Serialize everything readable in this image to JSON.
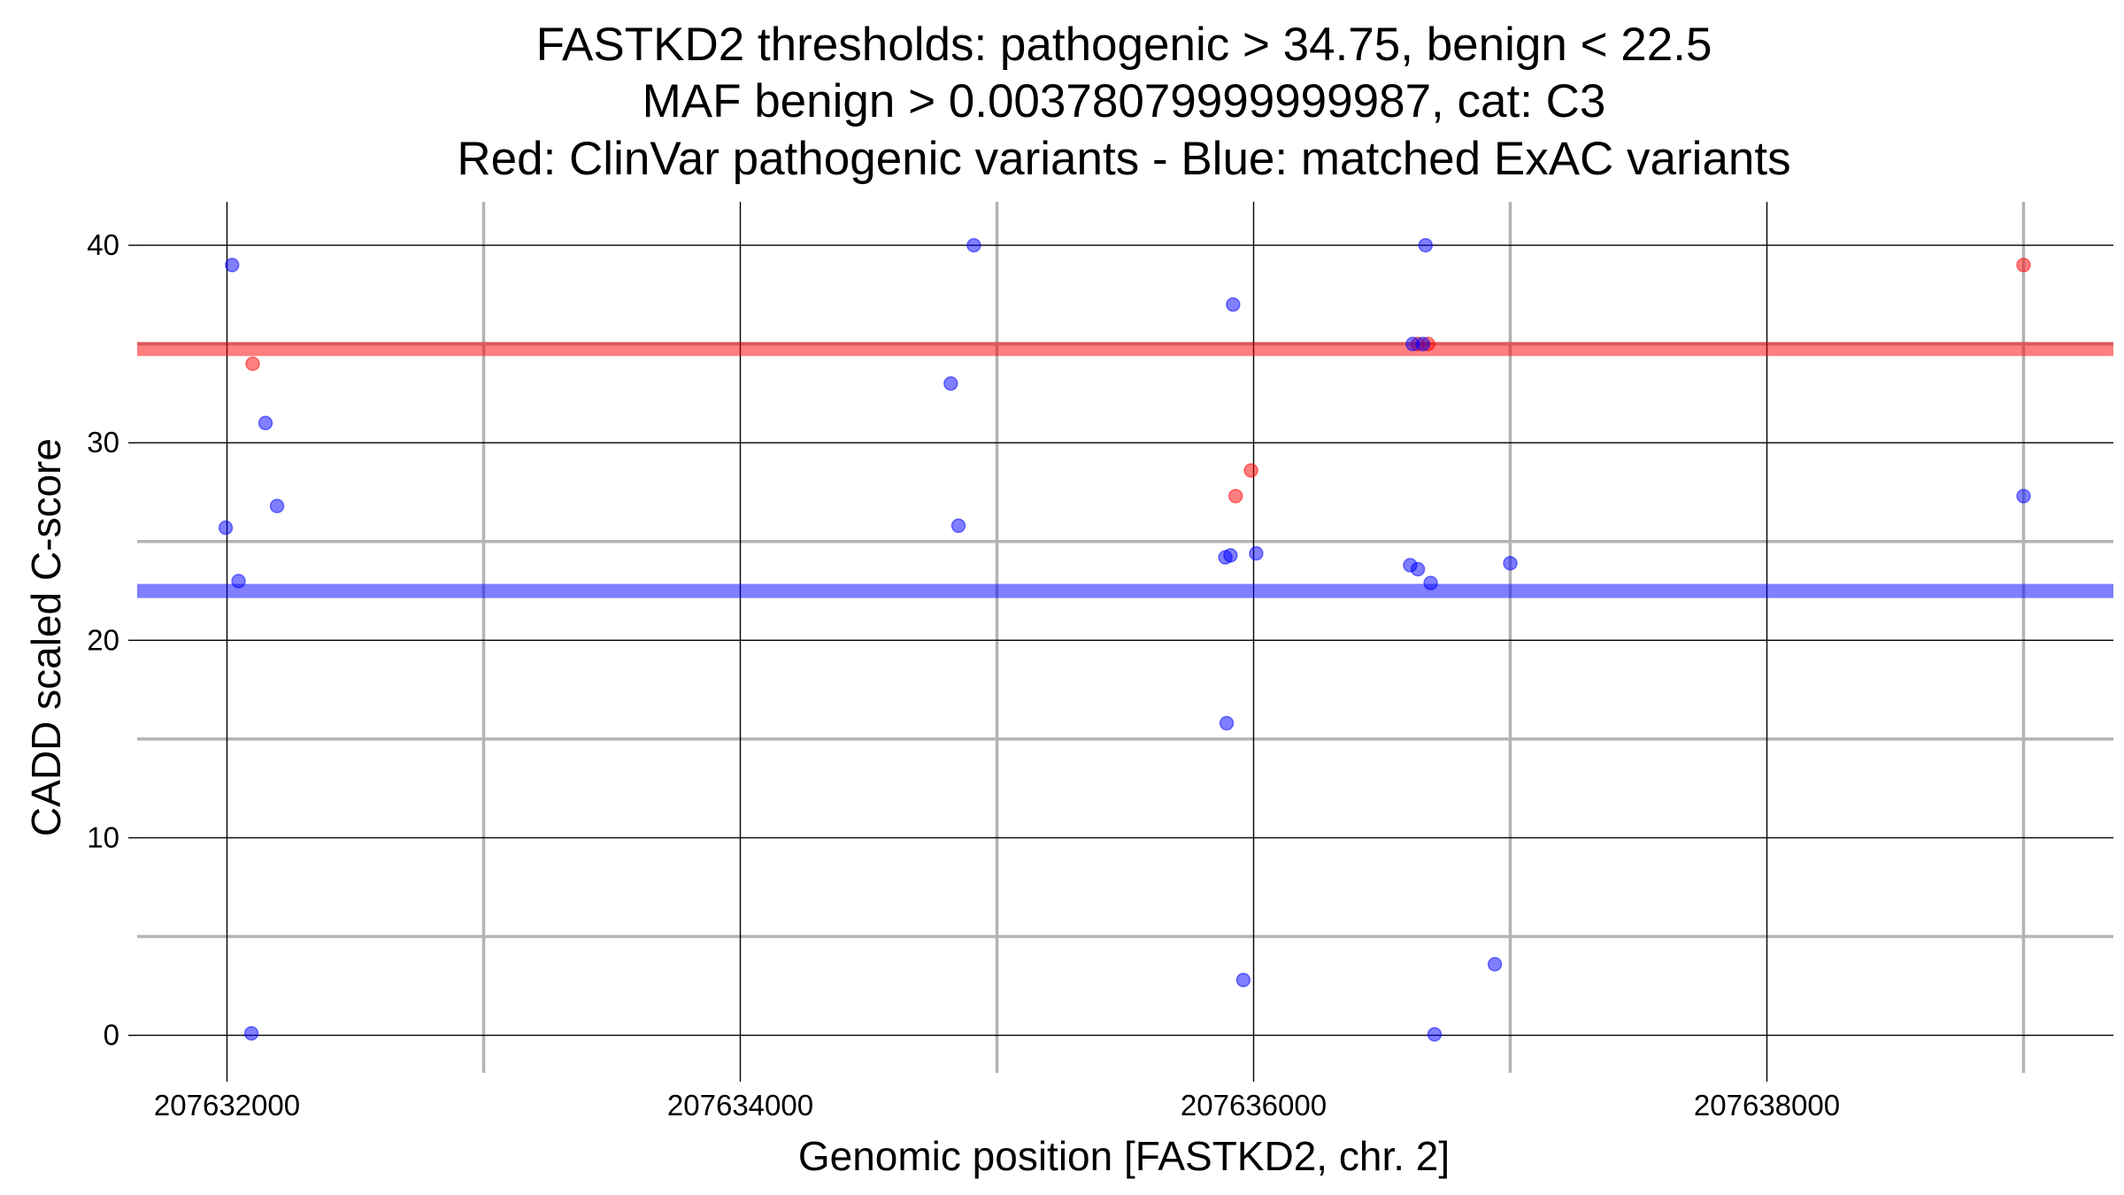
{
  "chart_data": {
    "type": "scatter",
    "title_lines": [
      "FASTKD2 thresholds: pathogenic > 34.75, benign < 22.5",
      "MAF benign > 0.00378079999999987, cat: C3",
      "Red: ClinVar pathogenic variants - Blue: matched ExAC variants"
    ],
    "xlabel": "Genomic position [FASTKD2, chr. 2]",
    "ylabel": "CADD scaled C-score",
    "xlim": [
      207631650,
      207639350
    ],
    "ylim": [
      -1.9,
      42.2
    ],
    "x_ticks": [
      207632000,
      207634000,
      207636000,
      207638000
    ],
    "x_tick_labels": [
      "207632000",
      "207634000",
      "207636000",
      "207638000"
    ],
    "x_minor_ticks": [
      207633000,
      207635000,
      207637000,
      207639000
    ],
    "y_ticks": [
      0,
      10,
      20,
      30,
      40
    ],
    "y_tick_labels": [
      "0",
      "10",
      "20",
      "30",
      "40"
    ],
    "y_minor_ticks": [
      5,
      15,
      25,
      35
    ],
    "grid": true,
    "thresholds": [
      {
        "name": "pathogenic",
        "value": 34.75,
        "color": "#ff0000"
      },
      {
        "name": "benign",
        "value": 22.5,
        "color": "#0000ff"
      }
    ],
    "series": [
      {
        "color": "#ff0000",
        "points": [
          {
            "x": 207632100,
            "y": 34.0
          },
          {
            "x": 207635930,
            "y": 27.3
          },
          {
            "x": 207635990,
            "y": 28.6
          },
          {
            "x": 207636640,
            "y": 35.0
          },
          {
            "x": 207636680,
            "y": 35.0
          },
          {
            "x": 207639000,
            "y": 39.0
          }
        ]
      },
      {
        "color": "#0000ff",
        "points": [
          {
            "x": 207632020,
            "y": 39.0
          },
          {
            "x": 207631995,
            "y": 25.7
          },
          {
            "x": 207632045,
            "y": 23.0
          },
          {
            "x": 207632150,
            "y": 31.0
          },
          {
            "x": 207632195,
            "y": 26.8
          },
          {
            "x": 207632095,
            "y": 0.1
          },
          {
            "x": 207634820,
            "y": 33.0
          },
          {
            "x": 207634850,
            "y": 25.8
          },
          {
            "x": 207634910,
            "y": 40.0
          },
          {
            "x": 207635920,
            "y": 37.0
          },
          {
            "x": 207635890,
            "y": 24.2
          },
          {
            "x": 207635910,
            "y": 24.3
          },
          {
            "x": 207636010,
            "y": 24.4
          },
          {
            "x": 207635895,
            "y": 15.8
          },
          {
            "x": 207635960,
            "y": 2.8
          },
          {
            "x": 207636670,
            "y": 40.0
          },
          {
            "x": 207636620,
            "y": 35.0
          },
          {
            "x": 207636660,
            "y": 35.0
          },
          {
            "x": 207636610,
            "y": 23.8
          },
          {
            "x": 207636640,
            "y": 23.6
          },
          {
            "x": 207636690,
            "y": 22.9
          },
          {
            "x": 207637000,
            "y": 23.9
          },
          {
            "x": 207636940,
            "y": 3.6
          },
          {
            "x": 207636705,
            "y": 0.05
          },
          {
            "x": 207639000,
            "y": 27.3
          }
        ]
      }
    ]
  }
}
